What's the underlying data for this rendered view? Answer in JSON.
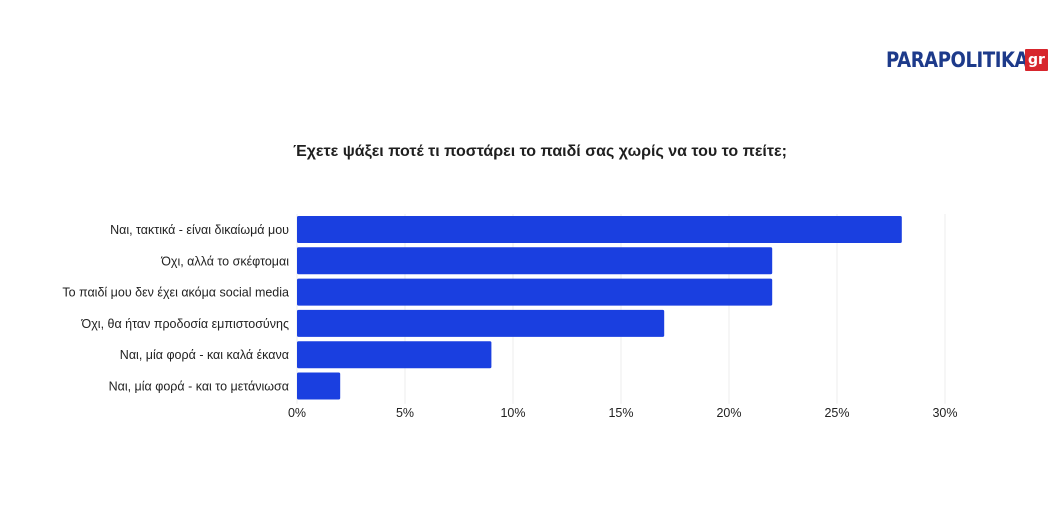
{
  "brand": {
    "name": "PARAPOLITIKA",
    "suffix": "gr"
  },
  "chart_data": {
    "type": "bar",
    "orientation": "horizontal",
    "title": "Έχετε ψάξει ποτέ τι ποστάρει το παιδί σας χωρίς να του το πείτε;",
    "categories": [
      "Ναι, τακτικά - είναι δικαίωμά μου",
      "Όχι, αλλά το σκέφτομαι",
      "Το παιδί μου δεν έχει ακόμα social media",
      "Όχι, θα ήταν προδοσία εμπιστοσύνης",
      "Ναι, μία φορά - και καλά έκανα",
      "Ναι, μία φορά - και το μετάνιωσα"
    ],
    "values": [
      28,
      22,
      22,
      17,
      9,
      2
    ],
    "xlim": [
      0,
      30
    ],
    "xticks": [
      0,
      5,
      10,
      15,
      20,
      25,
      30
    ],
    "xtick_labels": [
      "0%",
      "5%",
      "10%",
      "15%",
      "20%",
      "25%",
      "30%"
    ],
    "grid": true,
    "bar_color": "#1a3fe0"
  }
}
